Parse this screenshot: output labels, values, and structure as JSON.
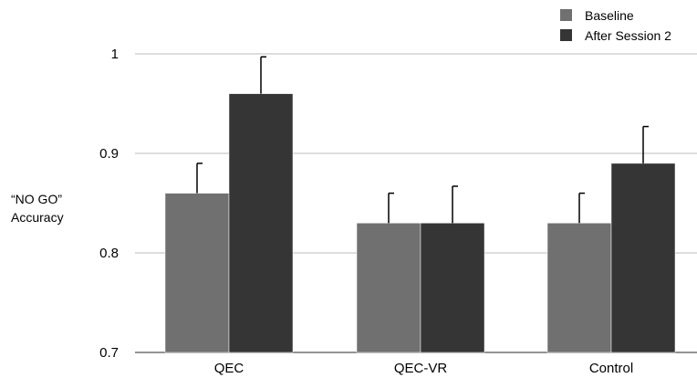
{
  "chart_data": {
    "type": "bar",
    "title": "",
    "xlabel": "",
    "ylabel_lines": [
      "“NO GO”",
      "Accuracy"
    ],
    "categories": [
      "QEC",
      "QEC-VR",
      "Control"
    ],
    "series": [
      {
        "name": "Baseline",
        "values": [
          0.86,
          0.83,
          0.83
        ],
        "errors": [
          0.03,
          0.03,
          0.03
        ],
        "color": "#707070"
      },
      {
        "name": "After Session 2",
        "values": [
          0.96,
          0.83,
          0.89
        ],
        "errors": [
          0.037,
          0.037,
          0.037
        ],
        "color": "#353535"
      }
    ],
    "ylim": [
      0.7,
      1.0
    ],
    "yticks": [
      {
        "value": 0.7,
        "label": "0.7"
      },
      {
        "value": 0.8,
        "label": "0.8"
      },
      {
        "value": 0.9,
        "label": "0.9"
      },
      {
        "value": 1.0,
        "label": "1"
      }
    ],
    "grid": true,
    "legend_position": "top-right"
  }
}
